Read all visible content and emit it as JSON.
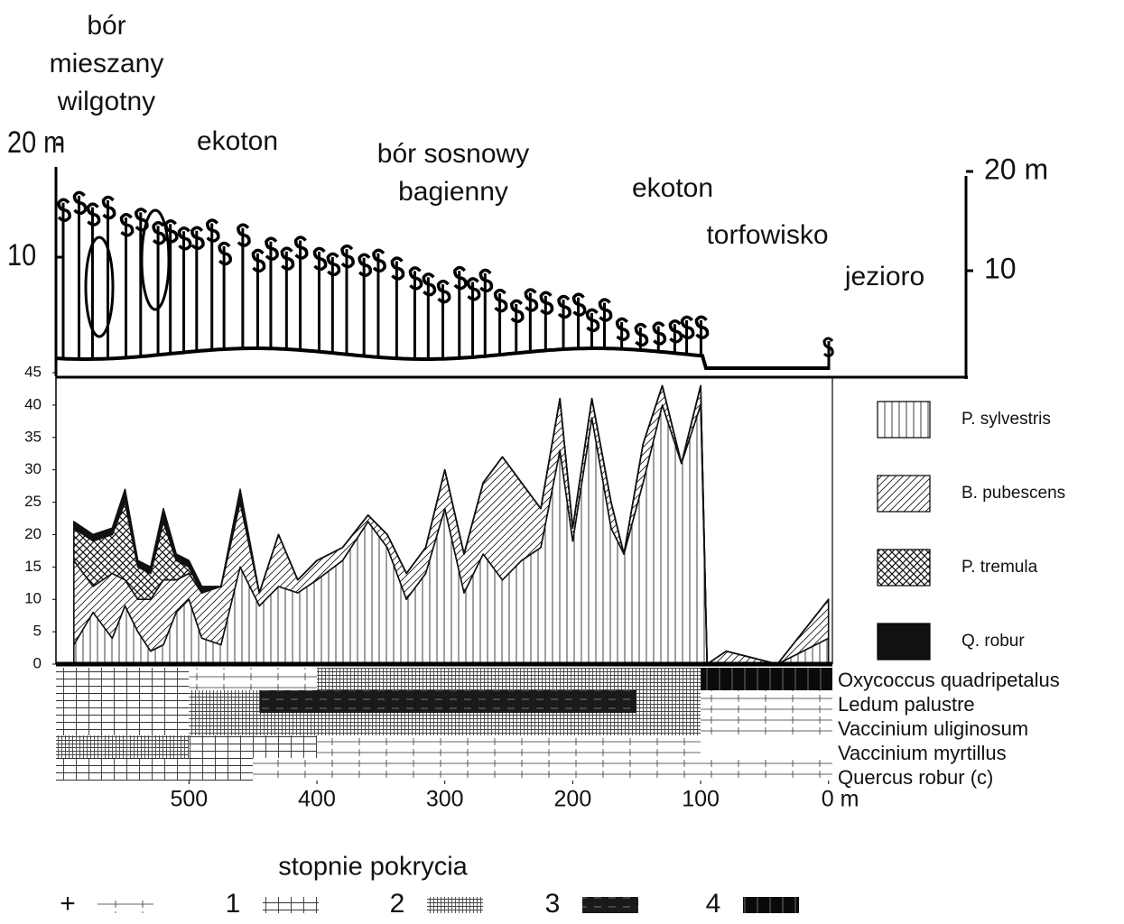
{
  "chart_data": [
    {
      "type": "profile",
      "zones": [
        [
          "bór",
          "mieszany",
          "wilgotny"
        ],
        [
          "ekoton"
        ],
        [
          "bór sosnowy",
          "bagienny"
        ],
        [
          "ekoton"
        ],
        [
          "torfowisko"
        ],
        [
          "jezioro"
        ]
      ],
      "ylim": [
        0,
        20
      ],
      "yticks": [
        {
          "value": 20,
          "label": "20 m"
        },
        10
      ],
      "y2lim": [
        0,
        20
      ],
      "y2ticks": [
        {
          "value": 20,
          "label": "20 m"
        },
        10
      ]
    },
    {
      "type": "area",
      "stacked": true,
      "legend": "right",
      "x": [
        590,
        575,
        560,
        550,
        540,
        530,
        520,
        510,
        500,
        490,
        475,
        460,
        445,
        430,
        415,
        400,
        380,
        360,
        345,
        330,
        315,
        300,
        285,
        270,
        255,
        240,
        225,
        210,
        200,
        185,
        170,
        160,
        145,
        130,
        115,
        100,
        95,
        80,
        60,
        40,
        20,
        0
      ],
      "xlim": [
        604,
        -3
      ],
      "ylim": [
        0,
        45
      ],
      "yticks": [
        0,
        5,
        10,
        15,
        20,
        25,
        30,
        35,
        40,
        45
      ],
      "series": [
        {
          "name": "P. sylvestris",
          "color": "#111111",
          "values": [
            3,
            8,
            4,
            9,
            5,
            2,
            3,
            8,
            10,
            4,
            3,
            15,
            9,
            12,
            11,
            13,
            16,
            22,
            18,
            10,
            14,
            24,
            11,
            17,
            13,
            16,
            18,
            33,
            19,
            38,
            21,
            17,
            28,
            40,
            31,
            40,
            0,
            0,
            0,
            0,
            2,
            4
          ]
        },
        {
          "name": "B. pubescens",
          "color": "#111111",
          "values": [
            13,
            4,
            10,
            4,
            5,
            8,
            10,
            5,
            4,
            7,
            9,
            10,
            2,
            8,
            2,
            3,
            2,
            1,
            2,
            4,
            4,
            6,
            6,
            11,
            19,
            12,
            6,
            8,
            2,
            3,
            4,
            0,
            6,
            3,
            0,
            3,
            0,
            2,
            1,
            0,
            3,
            6
          ]
        },
        {
          "name": "P. tremula",
          "color": "#111111",
          "values": [
            5,
            7,
            6,
            12,
            5,
            4,
            9,
            3,
            1,
            0,
            0,
            0,
            0,
            0,
            0,
            0,
            0,
            0,
            0,
            0,
            0,
            0,
            0,
            0,
            0,
            0,
            0,
            0,
            0,
            0,
            0,
            0,
            0,
            0,
            0,
            0,
            0,
            0,
            0,
            0,
            0,
            0
          ]
        },
        {
          "name": "Q. robur",
          "color": "#111111",
          "values": [
            1,
            1,
            1,
            2,
            1,
            1,
            2,
            1,
            1,
            1,
            0,
            2,
            0,
            0,
            0,
            0,
            0,
            0,
            0,
            0,
            0,
            0,
            0,
            0,
            0,
            0,
            0,
            0,
            0,
            0,
            0,
            0,
            0,
            0,
            0,
            0,
            0,
            0,
            0,
            0,
            0,
            0
          ]
        }
      ]
    },
    {
      "type": "cover",
      "xlim": [
        604,
        -3
      ],
      "xticks": [
        500,
        400,
        300,
        200,
        100,
        {
          "value": 0,
          "label": "0 m"
        }
      ],
      "legend_title": "stopnie pokrycia",
      "cover_classes": [
        "+",
        "1",
        "2",
        "3",
        "4"
      ],
      "rows": [
        {
          "name": "Oxycoccus quadripetalus",
          "segments": [
            {
              "x": [
                604,
                500
              ],
              "cover": "1"
            },
            {
              "x": [
                500,
                400
              ],
              "cover": "+"
            },
            {
              "x": [
                400,
                100
              ],
              "cover": "2"
            },
            {
              "x": [
                100,
                -3
              ],
              "cover": "4"
            }
          ]
        },
        {
          "name": "Ledum palustre",
          "segments": [
            {
              "x": [
                604,
                500
              ],
              "cover": "1"
            },
            {
              "x": [
                500,
                445
              ],
              "cover": "2"
            },
            {
              "x": [
                445,
                150
              ],
              "cover": "3"
            },
            {
              "x": [
                150,
                100
              ],
              "cover": "2"
            },
            {
              "x": [
                100,
                -3
              ],
              "cover": "+"
            }
          ]
        },
        {
          "name": "Vaccinium uliginosum",
          "segments": [
            {
              "x": [
                604,
                500
              ],
              "cover": "1"
            },
            {
              "x": [
                500,
                100
              ],
              "cover": "2"
            },
            {
              "x": [
                100,
                -3
              ],
              "cover": "+"
            }
          ]
        },
        {
          "name": "Vaccinium myrtillus",
          "segments": [
            {
              "x": [
                604,
                500
              ],
              "cover": "2"
            },
            {
              "x": [
                500,
                400
              ],
              "cover": "1"
            },
            {
              "x": [
                400,
                100
              ],
              "cover": "+"
            }
          ]
        },
        {
          "name": "Quercus robur (c)",
          "segments": [
            {
              "x": [
                604,
                450
              ],
              "cover": "1"
            },
            {
              "x": [
                450,
                -3
              ],
              "cover": "+"
            }
          ]
        }
      ]
    }
  ]
}
